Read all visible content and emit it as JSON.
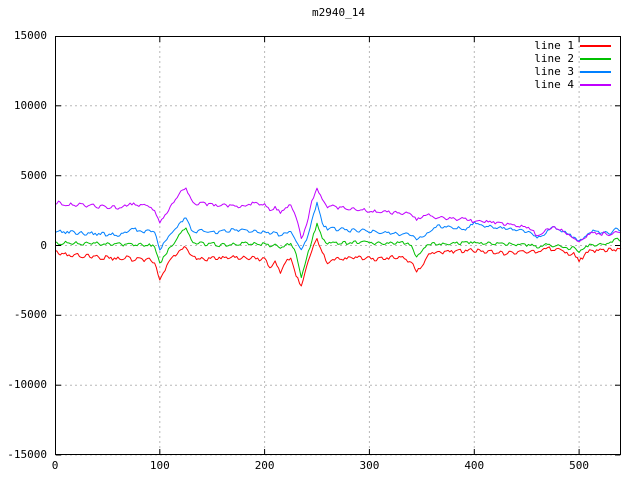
{
  "window": {
    "background": "#ffffff",
    "frame_color": "#000000"
  },
  "chart_data": {
    "type": "line",
    "title": "m2940_14",
    "xlabel": "",
    "ylabel": "",
    "xlim": [
      0,
      540
    ],
    "ylim": [
      -15000,
      15000
    ],
    "xticks": [
      0,
      100,
      200,
      300,
      400,
      500
    ],
    "yticks": [
      -15000,
      -10000,
      -5000,
      0,
      5000,
      10000,
      15000
    ],
    "grid": true,
    "grid_color": "#b8b8b8",
    "legend_position": "top-right",
    "x_step": 5,
    "series": [
      {
        "name": "line 1",
        "color": "#ff0000",
        "noise": 130,
        "values": [
          -420,
          -680,
          -520,
          -790,
          -600,
          -850,
          -640,
          -900,
          -700,
          -980,
          -760,
          -1050,
          -820,
          -1000,
          -780,
          -1100,
          -870,
          -1150,
          -900,
          -1250,
          -2470,
          -1800,
          -1000,
          -750,
          -300,
          -150,
          -700,
          -1000,
          -850,
          -1100,
          -800,
          -1000,
          -780,
          -950,
          -720,
          -980,
          -760,
          -1020,
          -800,
          -1100,
          -900,
          -1600,
          -1100,
          -2000,
          -1200,
          -900,
          -2200,
          -2900,
          -1500,
          -400,
          500,
          -500,
          -1300,
          -1000,
          -850,
          -1050,
          -800,
          -950,
          -750,
          -1000,
          -800,
          -1100,
          -850,
          -1000,
          -780,
          -950,
          -820,
          -1000,
          -1200,
          -1900,
          -1500,
          -800,
          -500,
          -440,
          -600,
          -350,
          -550,
          -300,
          -500,
          -280,
          -480,
          -300,
          -550,
          -350,
          -600,
          -400,
          -650,
          -420,
          -600,
          -380,
          -550,
          -350,
          -500,
          -300,
          -150,
          -350,
          -200,
          -400,
          -700,
          -500,
          -1160,
          -700,
          -300,
          -500,
          -250,
          -450,
          -200,
          -400,
          -180
        ]
      },
      {
        "name": "line 2",
        "color": "#00c000",
        "noise": 110,
        "values": [
          250,
          80,
          300,
          120,
          280,
          60,
          240,
          90,
          260,
          40,
          200,
          20,
          180,
          -40,
          150,
          -20,
          130,
          -60,
          120,
          -100,
          -1250,
          -700,
          -100,
          300,
          900,
          1250,
          400,
          100,
          250,
          0,
          200,
          -50,
          150,
          -30,
          180,
          20,
          200,
          40,
          220,
          60,
          150,
          -100,
          100,
          -200,
          50,
          150,
          -600,
          -2300,
          -900,
          300,
          1600,
          500,
          100,
          250,
          80,
          280,
          120,
          300,
          150,
          320,
          180,
          60,
          220,
          90,
          250,
          110,
          260,
          130,
          0,
          -820,
          -400,
          50,
          200,
          40,
          180,
          60,
          220,
          100,
          250,
          130,
          270,
          150,
          100,
          220,
          60,
          180,
          20,
          150,
          -20,
          120,
          -60,
          100,
          -180,
          -50,
          80,
          -100,
          60,
          -150,
          -300,
          -100,
          -500,
          -200,
          100,
          -50,
          150,
          50,
          250,
          500,
          270
        ]
      },
      {
        "name": "line 3",
        "color": "#0080ff",
        "noise": 110,
        "values": [
          900,
          1100,
          850,
          1050,
          800,
          1000,
          750,
          980,
          720,
          950,
          700,
          900,
          650,
          880,
          1000,
          1200,
          1050,
          900,
          1100,
          950,
          -320,
          300,
          800,
          1200,
          1700,
          1970,
          1100,
          900,
          1150,
          950,
          1000,
          850,
          1100,
          950,
          1200,
          1000,
          1150,
          950,
          1100,
          900,
          1000,
          800,
          950,
          700,
          900,
          1000,
          300,
          -300,
          400,
          1800,
          3100,
          1600,
          1100,
          1300,
          1050,
          1250,
          1000,
          1200,
          950,
          1150,
          900,
          1050,
          850,
          1000,
          800,
          950,
          750,
          900,
          700,
          400,
          600,
          900,
          1100,
          1470,
          1250,
          1400,
          1200,
          1350,
          1150,
          1300,
          1700,
          1500,
          1300,
          1450,
          1250,
          1350,
          1150,
          1250,
          1050,
          1150,
          950,
          850,
          540,
          700,
          1100,
          1350,
          1150,
          1000,
          800,
          600,
          350,
          600,
          900,
          1050,
          850,
          1000,
          800,
          1250,
          1100
        ]
      },
      {
        "name": "line 4",
        "color": "#c000ff",
        "noise": 120,
        "values": [
          2970,
          3100,
          2850,
          3050,
          2800,
          3000,
          2750,
          2950,
          2700,
          2900,
          2650,
          2850,
          2600,
          2800,
          2900,
          3050,
          2800,
          2950,
          2750,
          2500,
          1610,
          2200,
          2800,
          3300,
          3900,
          4120,
          3300,
          2900,
          3100,
          2850,
          3000,
          2800,
          2950,
          2750,
          2900,
          2700,
          2850,
          2950,
          3050,
          2900,
          3000,
          2500,
          2800,
          2300,
          2700,
          2900,
          2000,
          500,
          1500,
          3200,
          4100,
          3300,
          2700,
          2900,
          2600,
          2800,
          2550,
          2700,
          2500,
          2650,
          2400,
          2550,
          2350,
          2500,
          2300,
          2450,
          2250,
          2400,
          2200,
          1800,
          2000,
          2200,
          2100,
          1970,
          2050,
          1900,
          2000,
          1850,
          1950,
          1800,
          1700,
          1800,
          1650,
          1750,
          1550,
          1650,
          1450,
          1550,
          1350,
          1450,
          1250,
          1100,
          700,
          850,
          1200,
          1350,
          1150,
          1000,
          800,
          500,
          270,
          500,
          800,
          950,
          800,
          900,
          750,
          1000,
          890
        ]
      }
    ]
  }
}
